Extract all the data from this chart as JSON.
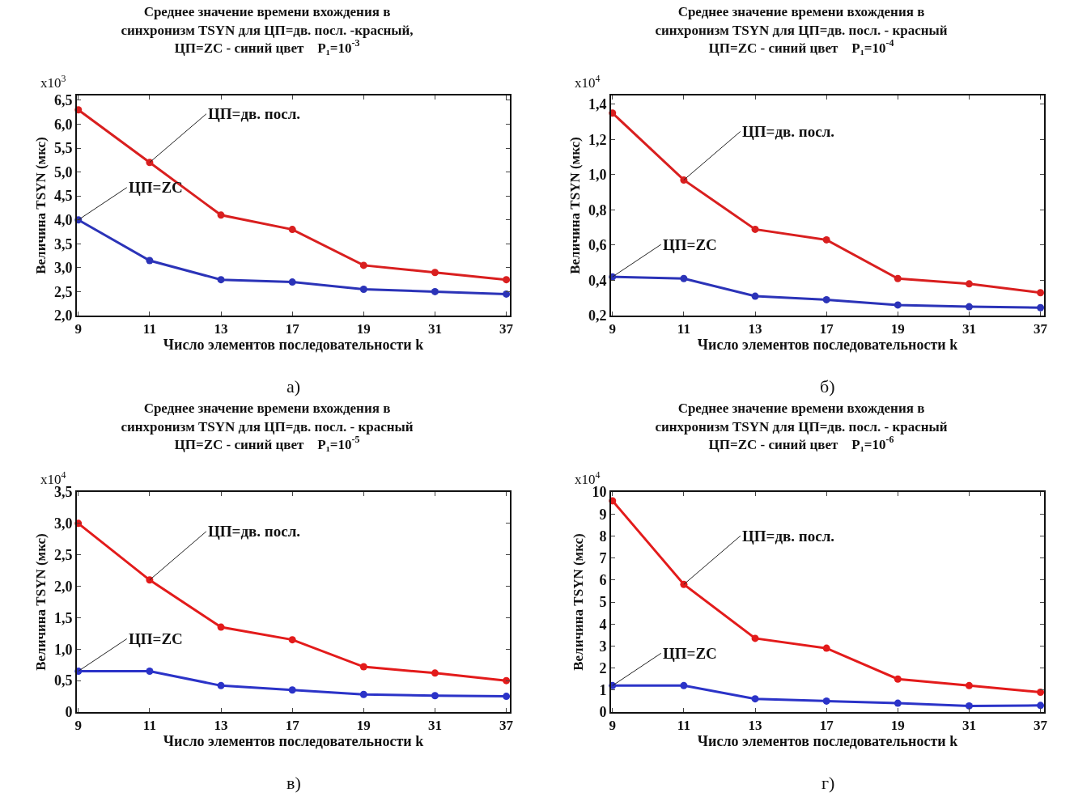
{
  "chart_data": [
    {
      "type": "line",
      "title": "Среднее значение времени вхождения в\nсинхронизм TSYN для ЦП=дв. посл. -красный,\nЦП=ZC - синий цвет    P₁=10$^{-3}$",
      "xlabel": "Число элементов последовательности k",
      "ylabel": "Величина TSYN (мкс)",
      "annotations": [
        "x10$^{3}$",
        "а)"
      ],
      "categories": [
        "9",
        "11",
        "13",
        "17",
        "19",
        "31",
        "37"
      ],
      "marker": "circle",
      "grid": false,
      "legend": false,
      "ylim": [
        2.0,
        6.6
      ],
      "yticks": [
        {
          "value": 2.0,
          "label": "2,0"
        },
        {
          "value": 2.5,
          "label": "2,5"
        },
        {
          "value": 3.0,
          "label": "3,0"
        },
        {
          "value": 3.5,
          "label": "3,5"
        },
        {
          "value": 4.0,
          "label": "4,0"
        },
        {
          "value": 4.5,
          "label": "4,5"
        },
        {
          "value": 5.0,
          "label": "5,0"
        },
        {
          "value": 5.5,
          "label": "5,5"
        },
        {
          "value": 6.0,
          "label": "6,0"
        },
        {
          "value": 6.5,
          "label": "6,5"
        }
      ],
      "series": [
        {
          "name": "ЦП=дв. посл.",
          "color": "#d91f1f",
          "values": [
            6.3,
            5.2,
            4.1,
            3.8,
            3.05,
            2.9,
            2.75
          ]
        },
        {
          "name": "ЦП=ZC",
          "color": "#2b33b8",
          "values": [
            4.0,
            3.15,
            2.75,
            2.7,
            2.55,
            2.5,
            2.45
          ]
        }
      ]
    },
    {
      "type": "line",
      "title": "Среднее значение времени вхождения в\nсинхронизм TSYN для ЦП=дв. посл. - красный\nЦП=ZC - синий цвет    P₁=10$^{-4}$",
      "xlabel": "Число элементов последовательности k",
      "ylabel": "Величина TSYN (мкс)",
      "annotations": [
        "x10$^{4}$",
        "б)"
      ],
      "categories": [
        "9",
        "11",
        "13",
        "17",
        "19",
        "31",
        "37"
      ],
      "marker": "circle",
      "grid": false,
      "legend": false,
      "ylim": [
        0.2,
        1.45
      ],
      "yticks": [
        {
          "value": 0.2,
          "label": "0,2"
        },
        {
          "value": 0.4,
          "label": "0,4"
        },
        {
          "value": 0.6,
          "label": "0,6"
        },
        {
          "value": 0.8,
          "label": "0,8"
        },
        {
          "value": 1.0,
          "label": "1,0"
        },
        {
          "value": 1.2,
          "label": "1,2"
        },
        {
          "value": 1.4,
          "label": "1,4"
        }
      ],
      "series": [
        {
          "name": "ЦП=дв. посл.",
          "color": "#d91f1f",
          "values": [
            1.35,
            0.97,
            0.69,
            0.63,
            0.41,
            0.38,
            0.33
          ]
        },
        {
          "name": "ЦП=ZC",
          "color": "#2b33b8",
          "values": [
            0.42,
            0.41,
            0.31,
            0.29,
            0.26,
            0.25,
            0.245
          ]
        }
      ]
    },
    {
      "type": "line",
      "title": "Среднее значение времени вхождения в\nсинхронизм TSYN для ЦП=дв. посл. - красный\nЦП=ZC - синий цвет    P₁=10$^{-5}$",
      "xlabel": "Число элементов последовательности k",
      "ylabel": "Величина TSYN (мкс)",
      "annotations": [
        "x10$^{4}$",
        "в)"
      ],
      "categories": [
        "9",
        "11",
        "13",
        "17",
        "19",
        "31",
        "37"
      ],
      "marker": "circle",
      "grid": false,
      "legend": false,
      "ylim": [
        0,
        3.5
      ],
      "yticks": [
        0,
        {
          "value": 0.5,
          "label": "0,5"
        },
        {
          "value": 1.0,
          "label": "1,0"
        },
        {
          "value": 1.5,
          "label": "1,5"
        },
        {
          "value": 2.0,
          "label": "2,0"
        },
        {
          "value": 2.5,
          "label": "2,5"
        },
        {
          "value": 3.0,
          "label": "3,0"
        },
        {
          "value": 3.5,
          "label": "3,5"
        }
      ],
      "series": [
        {
          "name": "ЦП=дв. посл.",
          "color": "#e31b1b",
          "values": [
            3.0,
            2.1,
            1.35,
            1.15,
            0.72,
            0.62,
            0.5
          ]
        },
        {
          "name": "ЦП=ZC",
          "color": "#2b33c8",
          "values": [
            0.65,
            0.65,
            0.42,
            0.35,
            0.28,
            0.26,
            0.25
          ]
        }
      ]
    },
    {
      "type": "line",
      "title": "Среднее значение времени вхождения в\nсинхронизм TSYN для ЦП=дв. посл. - красный\nЦП=ZC - синий цвет    P₁=10$^{-6}$",
      "xlabel": "Число элементов последовательности k",
      "ylabel": "Величина TSYN (мкс)",
      "annotations": [
        "x10$^{4}$",
        "г)"
      ],
      "categories": [
        "9",
        "11",
        "13",
        "17",
        "19",
        "31",
        "37"
      ],
      "marker": "circle",
      "grid": false,
      "legend": false,
      "ylim": [
        0,
        10
      ],
      "yticks": [
        0,
        1,
        2,
        3,
        4,
        5,
        6,
        7,
        8,
        9,
        10
      ],
      "series": [
        {
          "name": "ЦП=дв. посл.",
          "color": "#e31b1b",
          "values": [
            9.6,
            5.8,
            3.35,
            2.9,
            1.5,
            1.2,
            0.9
          ]
        },
        {
          "name": "ЦП=ZC",
          "color": "#2b33c8",
          "values": [
            1.2,
            1.2,
            0.6,
            0.5,
            0.4,
            0.28,
            0.3
          ]
        }
      ]
    }
  ]
}
